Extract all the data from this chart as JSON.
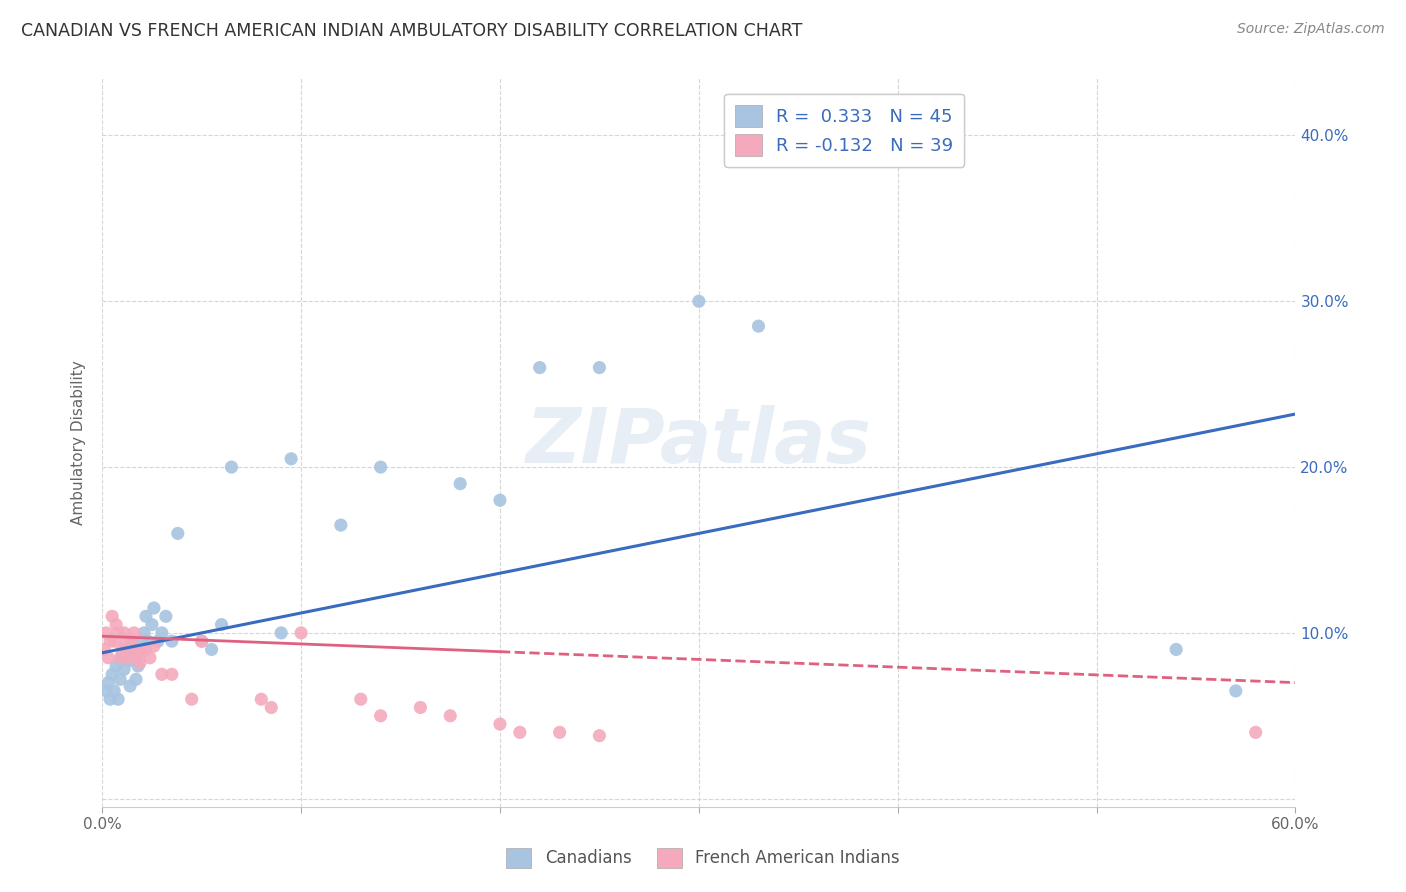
{
  "title": "CANADIAN VS FRENCH AMERICAN INDIAN AMBULATORY DISABILITY CORRELATION CHART",
  "source": "Source: ZipAtlas.com",
  "ylabel": "Ambulatory Disability",
  "watermark": "ZIPatlas",
  "xlim": [
    0.0,
    0.6
  ],
  "ylim": [
    -0.005,
    0.435
  ],
  "xticks": [
    0.0,
    0.1,
    0.2,
    0.3,
    0.4,
    0.5,
    0.6
  ],
  "yticks": [
    0.0,
    0.1,
    0.2,
    0.3,
    0.4
  ],
  "ytick_labels_right": [
    "",
    "10.0%",
    "20.0%",
    "30.0%",
    "40.0%"
  ],
  "xtick_labels": [
    "0.0%",
    "",
    "",
    "",
    "",
    "",
    "60.0%"
  ],
  "blue_color": "#A8C4E0",
  "pink_color": "#F4AABC",
  "blue_line_color": "#3A6BBF",
  "pink_line_color": "#E06080",
  "blue_line_x0": 0.0,
  "blue_line_y0": 0.088,
  "blue_line_x1": 0.6,
  "blue_line_y1": 0.232,
  "pink_line_x0": 0.0,
  "pink_line_y0": 0.098,
  "pink_line_x1": 0.6,
  "pink_line_y1": 0.07,
  "canadians_x": [
    0.002,
    0.003,
    0.004,
    0.005,
    0.006,
    0.007,
    0.008,
    0.009,
    0.01,
    0.011,
    0.012,
    0.013,
    0.014,
    0.015,
    0.016,
    0.017,
    0.018,
    0.02,
    0.021,
    0.022,
    0.023,
    0.025,
    0.026,
    0.028,
    0.03,
    0.032,
    0.035,
    0.038,
    0.05,
    0.055,
    0.06,
    0.065,
    0.09,
    0.095,
    0.12,
    0.14,
    0.18,
    0.2,
    0.22,
    0.25,
    0.3,
    0.33,
    0.39,
    0.54,
    0.57
  ],
  "canadians_y": [
    0.065,
    0.07,
    0.06,
    0.075,
    0.065,
    0.08,
    0.06,
    0.072,
    0.085,
    0.078,
    0.09,
    0.083,
    0.068,
    0.095,
    0.088,
    0.072,
    0.08,
    0.095,
    0.1,
    0.11,
    0.095,
    0.105,
    0.115,
    0.095,
    0.1,
    0.11,
    0.095,
    0.16,
    0.095,
    0.09,
    0.105,
    0.2,
    0.1,
    0.205,
    0.165,
    0.2,
    0.19,
    0.18,
    0.26,
    0.26,
    0.3,
    0.285,
    0.395,
    0.09,
    0.065
  ],
  "french_x": [
    0.001,
    0.002,
    0.003,
    0.004,
    0.005,
    0.006,
    0.007,
    0.008,
    0.009,
    0.01,
    0.011,
    0.012,
    0.013,
    0.014,
    0.015,
    0.016,
    0.017,
    0.018,
    0.019,
    0.02,
    0.022,
    0.024,
    0.026,
    0.03,
    0.035,
    0.045,
    0.05,
    0.08,
    0.085,
    0.1,
    0.13,
    0.14,
    0.16,
    0.175,
    0.2,
    0.21,
    0.23,
    0.25,
    0.58
  ],
  "french_y": [
    0.09,
    0.1,
    0.085,
    0.095,
    0.11,
    0.095,
    0.105,
    0.1,
    0.085,
    0.09,
    0.1,
    0.095,
    0.085,
    0.092,
    0.095,
    0.1,
    0.085,
    0.09,
    0.082,
    0.088,
    0.09,
    0.085,
    0.092,
    0.075,
    0.075,
    0.06,
    0.095,
    0.06,
    0.055,
    0.1,
    0.06,
    0.05,
    0.055,
    0.05,
    0.045,
    0.04,
    0.04,
    0.038,
    0.04
  ],
  "legend_label1": "R =  0.333   N = 45",
  "legend_label2": "R = -0.132   N = 39",
  "bottom_label1": "Canadians",
  "bottom_label2": "French American Indians"
}
